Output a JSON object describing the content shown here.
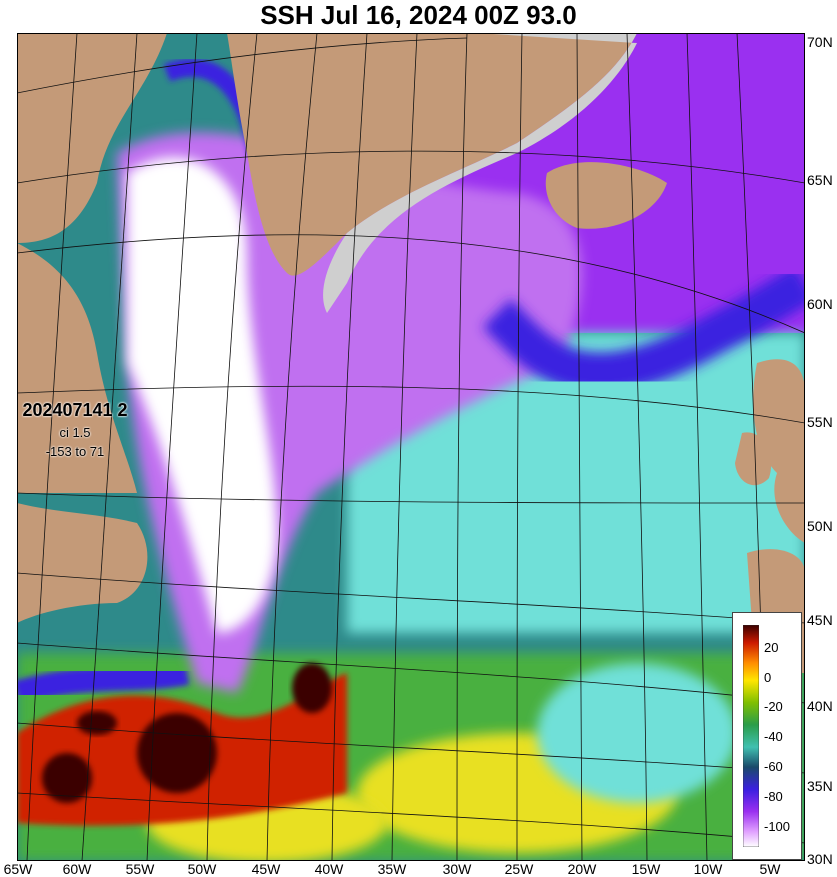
{
  "title": "SSH Jul 16, 2024 00Z 93.0",
  "info": {
    "date_code": "202407141 2",
    "ci": "ci 1.5",
    "range": "-153 to 71"
  },
  "lat_labels": [
    "70N",
    "65N",
    "60N",
    "55N",
    "50N",
    "45N",
    "40N",
    "35N",
    "30N"
  ],
  "lon_labels": [
    "65W",
    "60W",
    "55W",
    "50W",
    "45W",
    "40W",
    "35W",
    "30W",
    "25W",
    "20W",
    "15W",
    "10W",
    "5W"
  ],
  "colorbar": {
    "ticks": [
      "20",
      "0",
      "-20",
      "-40",
      "-60",
      "-80",
      "-100"
    ],
    "colors": [
      "#3a0000",
      "#cc1a00",
      "#ff8c00",
      "#ffe600",
      "#7fbf00",
      "#2a9d4a",
      "#40c0b0",
      "#1a4a6a",
      "#3a20e0",
      "#9a30f0",
      "#e0a0ff",
      "#ffffff"
    ]
  },
  "map_colors": {
    "land": "#c49a78",
    "ice": "#cfcfcf",
    "white": "#ffffff",
    "violet": "#c070f0",
    "purple": "#9a30f0",
    "blue": "#3a20e0",
    "teal_dark": "#1a4a6a",
    "teal": "#2e8a8a",
    "cyan": "#70e0d8",
    "green": "#4ab040",
    "yellow": "#e8e020",
    "red": "#d02000",
    "darkred": "#3a0000"
  }
}
